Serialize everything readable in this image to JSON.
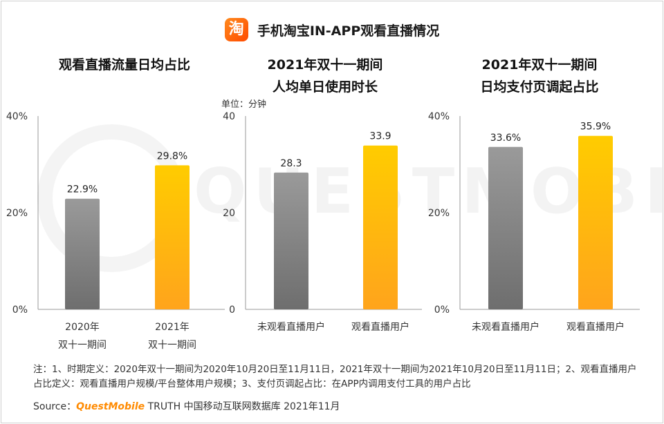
{
  "header": {
    "logo_char": "淘",
    "title": "手机淘宝IN-APP观看直播情况"
  },
  "panels": [
    {
      "title_lines": [
        "观看直播流量日均占比"
      ],
      "unit": ""
    },
    {
      "title_lines": [
        "2021年双十一期间",
        "人均单日使用时长"
      ],
      "unit": "单位：分钟"
    },
    {
      "title_lines": [
        "2021年双十一期间",
        "日均支付页调起占比"
      ],
      "unit": ""
    }
  ],
  "watermark": {
    "text": "QUESTMOBILE"
  },
  "chart_data": [
    {
      "type": "bar",
      "title": "观看直播流量日均占比",
      "categories": [
        [
          "2020年",
          "双十一期间"
        ],
        [
          "2021年",
          "双十一期间"
        ]
      ],
      "values": [
        22.9,
        29.8
      ],
      "value_labels": [
        "22.9%",
        "29.8%"
      ],
      "ylim": [
        0,
        40
      ],
      "yticks": [
        0,
        20,
        40
      ],
      "ytick_labels": [
        "0%",
        "20%",
        "40%"
      ],
      "colors": [
        "gray",
        "yellow"
      ]
    },
    {
      "type": "bar",
      "title": "2021年双十一期间 人均单日使用时长",
      "categories": [
        [
          "未观看直播用户"
        ],
        [
          "观看直播用户"
        ]
      ],
      "values": [
        28.3,
        33.9
      ],
      "value_labels": [
        "28.3",
        "33.9"
      ],
      "ylim": [
        0,
        40
      ],
      "yticks": [
        0,
        20,
        40
      ],
      "ytick_labels": [
        "0",
        "20",
        "40"
      ],
      "ylabel": "单位：分钟",
      "colors": [
        "gray",
        "yellow"
      ]
    },
    {
      "type": "bar",
      "title": "2021年双十一期间 日均支付页调起占比",
      "categories": [
        [
          "未观看直播用户"
        ],
        [
          "观看直播用户"
        ]
      ],
      "values": [
        33.6,
        35.9
      ],
      "value_labels": [
        "33.6%",
        "35.9%"
      ],
      "ylim": [
        0,
        40
      ],
      "yticks": [
        0,
        20,
        40
      ],
      "ytick_labels": [
        "0%",
        "20%",
        "40%"
      ],
      "colors": [
        "gray",
        "yellow"
      ]
    }
  ],
  "colors": {
    "gray_top": "#9a9a9a",
    "gray_bottom": "#6e6e6e",
    "yellow_top": "#ffcc00",
    "yellow_bottom": "#ffa41c",
    "axis": "#999999",
    "brand": "#ff8a00"
  },
  "footer": {
    "note": "注：1、时期定义：2020年双十一期间为2020年10月20日至11月11日，2021年双十一期间为2021年10月20日至11月11日；2、观看直播用户占比定义：观看直播用户规模/平台整体用户规模；3、支付页调起占比：在APP内调用支付工具的用户占比",
    "source_prefix": "Source：",
    "source_brand": "QuestMobile",
    "source_suffix": " TRUTH 中国移动互联网数据库 2021年11月"
  }
}
